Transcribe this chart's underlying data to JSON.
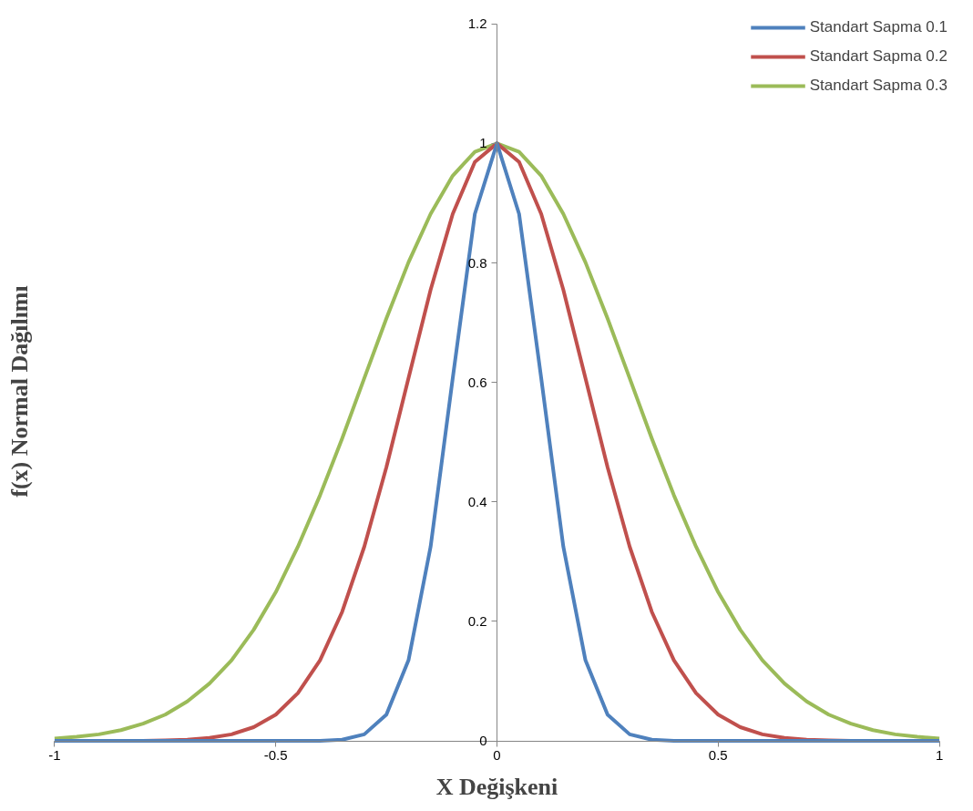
{
  "chart_data": {
    "type": "line",
    "xlabel": "X Değişkeni",
    "ylabel": "f(x) Normal Dağılımı",
    "x": [
      -1,
      -0.95,
      -0.9,
      -0.85,
      -0.8,
      -0.75,
      -0.7,
      -0.65,
      -0.6,
      -0.55,
      -0.5,
      -0.45,
      -0.4,
      -0.35,
      -0.3,
      -0.25,
      -0.2,
      -0.15,
      -0.1,
      -0.05,
      0,
      0.05,
      0.1,
      0.15,
      0.2,
      0.25,
      0.3,
      0.35,
      0.4,
      0.45,
      0.5,
      0.55,
      0.6,
      0.65,
      0.7,
      0.75,
      0.8,
      0.85,
      0.9,
      0.95,
      1
    ],
    "series": [
      {
        "name": "Standart Sapma 0.1",
        "color": "#4f81bd",
        "values": [
          0,
          0,
          0,
          0,
          0,
          0,
          0,
          0,
          0,
          0,
          0,
          0,
          0,
          0.002,
          0.011,
          0.044,
          0.135,
          0.325,
          0.607,
          0.882,
          1,
          0.882,
          0.607,
          0.325,
          0.135,
          0.044,
          0.011,
          0.002,
          0,
          0,
          0,
          0,
          0,
          0,
          0,
          0,
          0,
          0,
          0,
          0,
          0
        ]
      },
      {
        "name": "Standart Sapma 0.2",
        "color": "#c0504d",
        "x": [
          -0.8,
          -0.75,
          -0.7,
          -0.65,
          -0.6,
          -0.55,
          -0.5,
          -0.45,
          -0.4,
          -0.35,
          -0.3,
          -0.25,
          -0.2,
          -0.15,
          -0.1,
          -0.05,
          0,
          0.05,
          0.1,
          0.15,
          0.2,
          0.25,
          0.3,
          0.35,
          0.4,
          0.45,
          0.5,
          0.55,
          0.6,
          0.65,
          0.7,
          0.75,
          0.8
        ],
        "values": [
          0,
          0.001,
          0.002,
          0.005,
          0.011,
          0.023,
          0.044,
          0.08,
          0.135,
          0.216,
          0.325,
          0.458,
          0.607,
          0.755,
          0.882,
          0.969,
          1,
          0.969,
          0.882,
          0.755,
          0.607,
          0.458,
          0.325,
          0.216,
          0.135,
          0.08,
          0.044,
          0.023,
          0.011,
          0.005,
          0.002,
          0.001,
          0
        ]
      },
      {
        "name": "Standart Sapma 0.3",
        "color": "#9bbb59",
        "values": [
          0.004,
          0.007,
          0.011,
          0.018,
          0.029,
          0.044,
          0.066,
          0.096,
          0.135,
          0.186,
          0.249,
          0.325,
          0.411,
          0.506,
          0.607,
          0.707,
          0.801,
          0.882,
          0.946,
          0.986,
          1,
          0.986,
          0.946,
          0.882,
          0.801,
          0.707,
          0.607,
          0.506,
          0.411,
          0.325,
          0.249,
          0.186,
          0.135,
          0.096,
          0.066,
          0.044,
          0.029,
          0.018,
          0.011,
          0.007,
          0.004
        ]
      }
    ],
    "xlim": [
      -1,
      1
    ],
    "ylim": [
      0,
      1.2
    ],
    "xticks": [
      -1,
      -0.5,
      0,
      0.5,
      1
    ],
    "yticks": [
      0,
      0.2,
      0.4,
      0.6,
      0.8,
      1,
      1.2
    ],
    "grid": false,
    "legend": "top right",
    "marker": "none",
    "line_style": "solid"
  }
}
